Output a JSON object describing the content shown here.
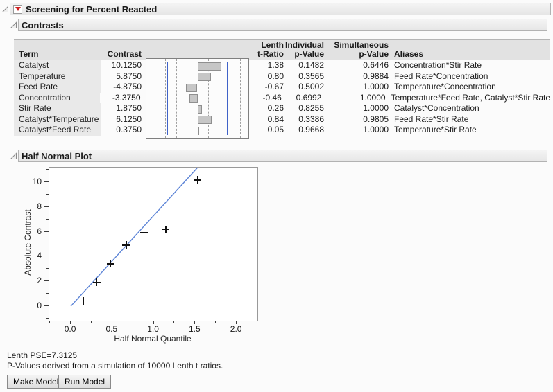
{
  "root_header": {
    "title": "Screening for Percent Reacted"
  },
  "contrasts": {
    "title": "Contrasts",
    "columns": {
      "term": "Term",
      "contrast": "Contrast",
      "t_ratio_line1": "Lenth",
      "t_ratio_line2": "t-Ratio",
      "p_ind_line1": "Individual",
      "p_ind_line2": "p-Value",
      "p_sim_line1": "Simultaneous",
      "p_sim_line2": "p-Value",
      "aliases": "Aliases"
    },
    "rows": [
      {
        "term": "Catalyst",
        "contrast": "10.1250",
        "t_ratio": "1.38",
        "p_individual": "0.1482",
        "p_simultaneous": "0.6446",
        "aliases": "Concentration*Stir Rate"
      },
      {
        "term": "Temperature",
        "contrast": "5.8750",
        "t_ratio": "0.80",
        "p_individual": "0.3565",
        "p_simultaneous": "0.9884",
        "aliases": "Feed Rate*Concentration"
      },
      {
        "term": "Feed Rate",
        "contrast": "-4.8750",
        "t_ratio": "-0.67",
        "p_individual": "0.5002",
        "p_simultaneous": "1.0000",
        "aliases": "Temperature*Concentration"
      },
      {
        "term": "Concentration",
        "contrast": "-3.3750",
        "t_ratio": "-0.46",
        "p_individual": "0.6992",
        "p_simultaneous": "1.0000",
        "aliases": "Temperature*Feed Rate, Catalyst*Stir Rate"
      },
      {
        "term": "Stir Rate",
        "contrast": "1.8750",
        "t_ratio": "0.26",
        "p_individual": "0.8255",
        "p_simultaneous": "1.0000",
        "aliases": "Catalyst*Concentration"
      },
      {
        "term": "Catalyst*Temperature",
        "contrast": "6.1250",
        "t_ratio": "0.84",
        "p_individual": "0.3386",
        "p_simultaneous": "0.9805",
        "aliases": "Feed Rate*Stir Rate"
      },
      {
        "term": "Catalyst*Feed Rate",
        "contrast": "0.3750",
        "t_ratio": "0.05",
        "p_individual": "0.9668",
        "p_simultaneous": "1.0000",
        "aliases": "Temperature*Stir Rate"
      }
    ]
  },
  "half_normal": {
    "title": "Half Normal Plot"
  },
  "chart_data": [
    {
      "type": "bar",
      "title": "Contrast bar panel",
      "orientation": "horizontal",
      "categories": [
        "Catalyst",
        "Temperature",
        "Feed Rate",
        "Concentration",
        "Stir Rate",
        "Catalyst*Temperature",
        "Catalyst*Feed Rate"
      ],
      "values": [
        10.125,
        5.875,
        -4.875,
        -3.375,
        1.875,
        6.125,
        0.375
      ],
      "xlim": [
        -21.6,
        21.6
      ],
      "ref_lines": [
        -12.8,
        12.8
      ],
      "gridline_step": 4.55,
      "grid": "dashed",
      "bar_color": "#c6c6c6",
      "ref_line_color": "#3f62c8"
    },
    {
      "type": "scatter",
      "title": "Half Normal Plot",
      "xlabel": "Half Normal Quantile",
      "ylabel": "Absolute Contrast",
      "x": [
        0.157,
        0.319,
        0.488,
        0.674,
        0.887,
        1.15,
        1.534
      ],
      "y": [
        0.375,
        1.875,
        3.375,
        4.875,
        5.875,
        6.125,
        10.125
      ],
      "xlim": [
        -0.26,
        2.25
      ],
      "ylim": [
        -1.17,
        11.17
      ],
      "x_major_ticks": [
        0.0,
        0.5,
        1.0,
        1.5,
        2.0
      ],
      "x_tick_labels": [
        "0.0",
        "0.5",
        "1.0",
        "1.5",
        "2.0"
      ],
      "x_minor_ticks": [
        -0.25,
        0.25,
        0.75,
        1.25,
        1.75,
        2.25
      ],
      "y_major_ticks": [
        0,
        2,
        4,
        6,
        8,
        10
      ],
      "y_tick_labels": [
        "0",
        "2",
        "4",
        "6",
        "8",
        "10"
      ],
      "y_minor_ticks": [
        -1,
        1,
        3,
        5,
        7,
        9,
        11
      ],
      "fit_line": {
        "slope": 7.3125,
        "intercept": 0,
        "color": "#5b83d6"
      },
      "marker": "plus",
      "grid": "off",
      "legend": "none"
    }
  ],
  "footer": {
    "line1": "Lenth PSE=7.3125",
    "line2": "P-Values derived from a simulation of 10000 Lenth t ratios.",
    "make_model_label": "Make Model",
    "run_model_label": "Run Model"
  },
  "colors": {
    "band_fill": "#ebebeb",
    "header_row_fill": "#e2e2e2",
    "term_column_fill": "#e9e9e9",
    "ref_line_blue": "#3f62c8",
    "fit_line_blue": "#5b83d6",
    "red_triangle": "#cd1f1f"
  }
}
